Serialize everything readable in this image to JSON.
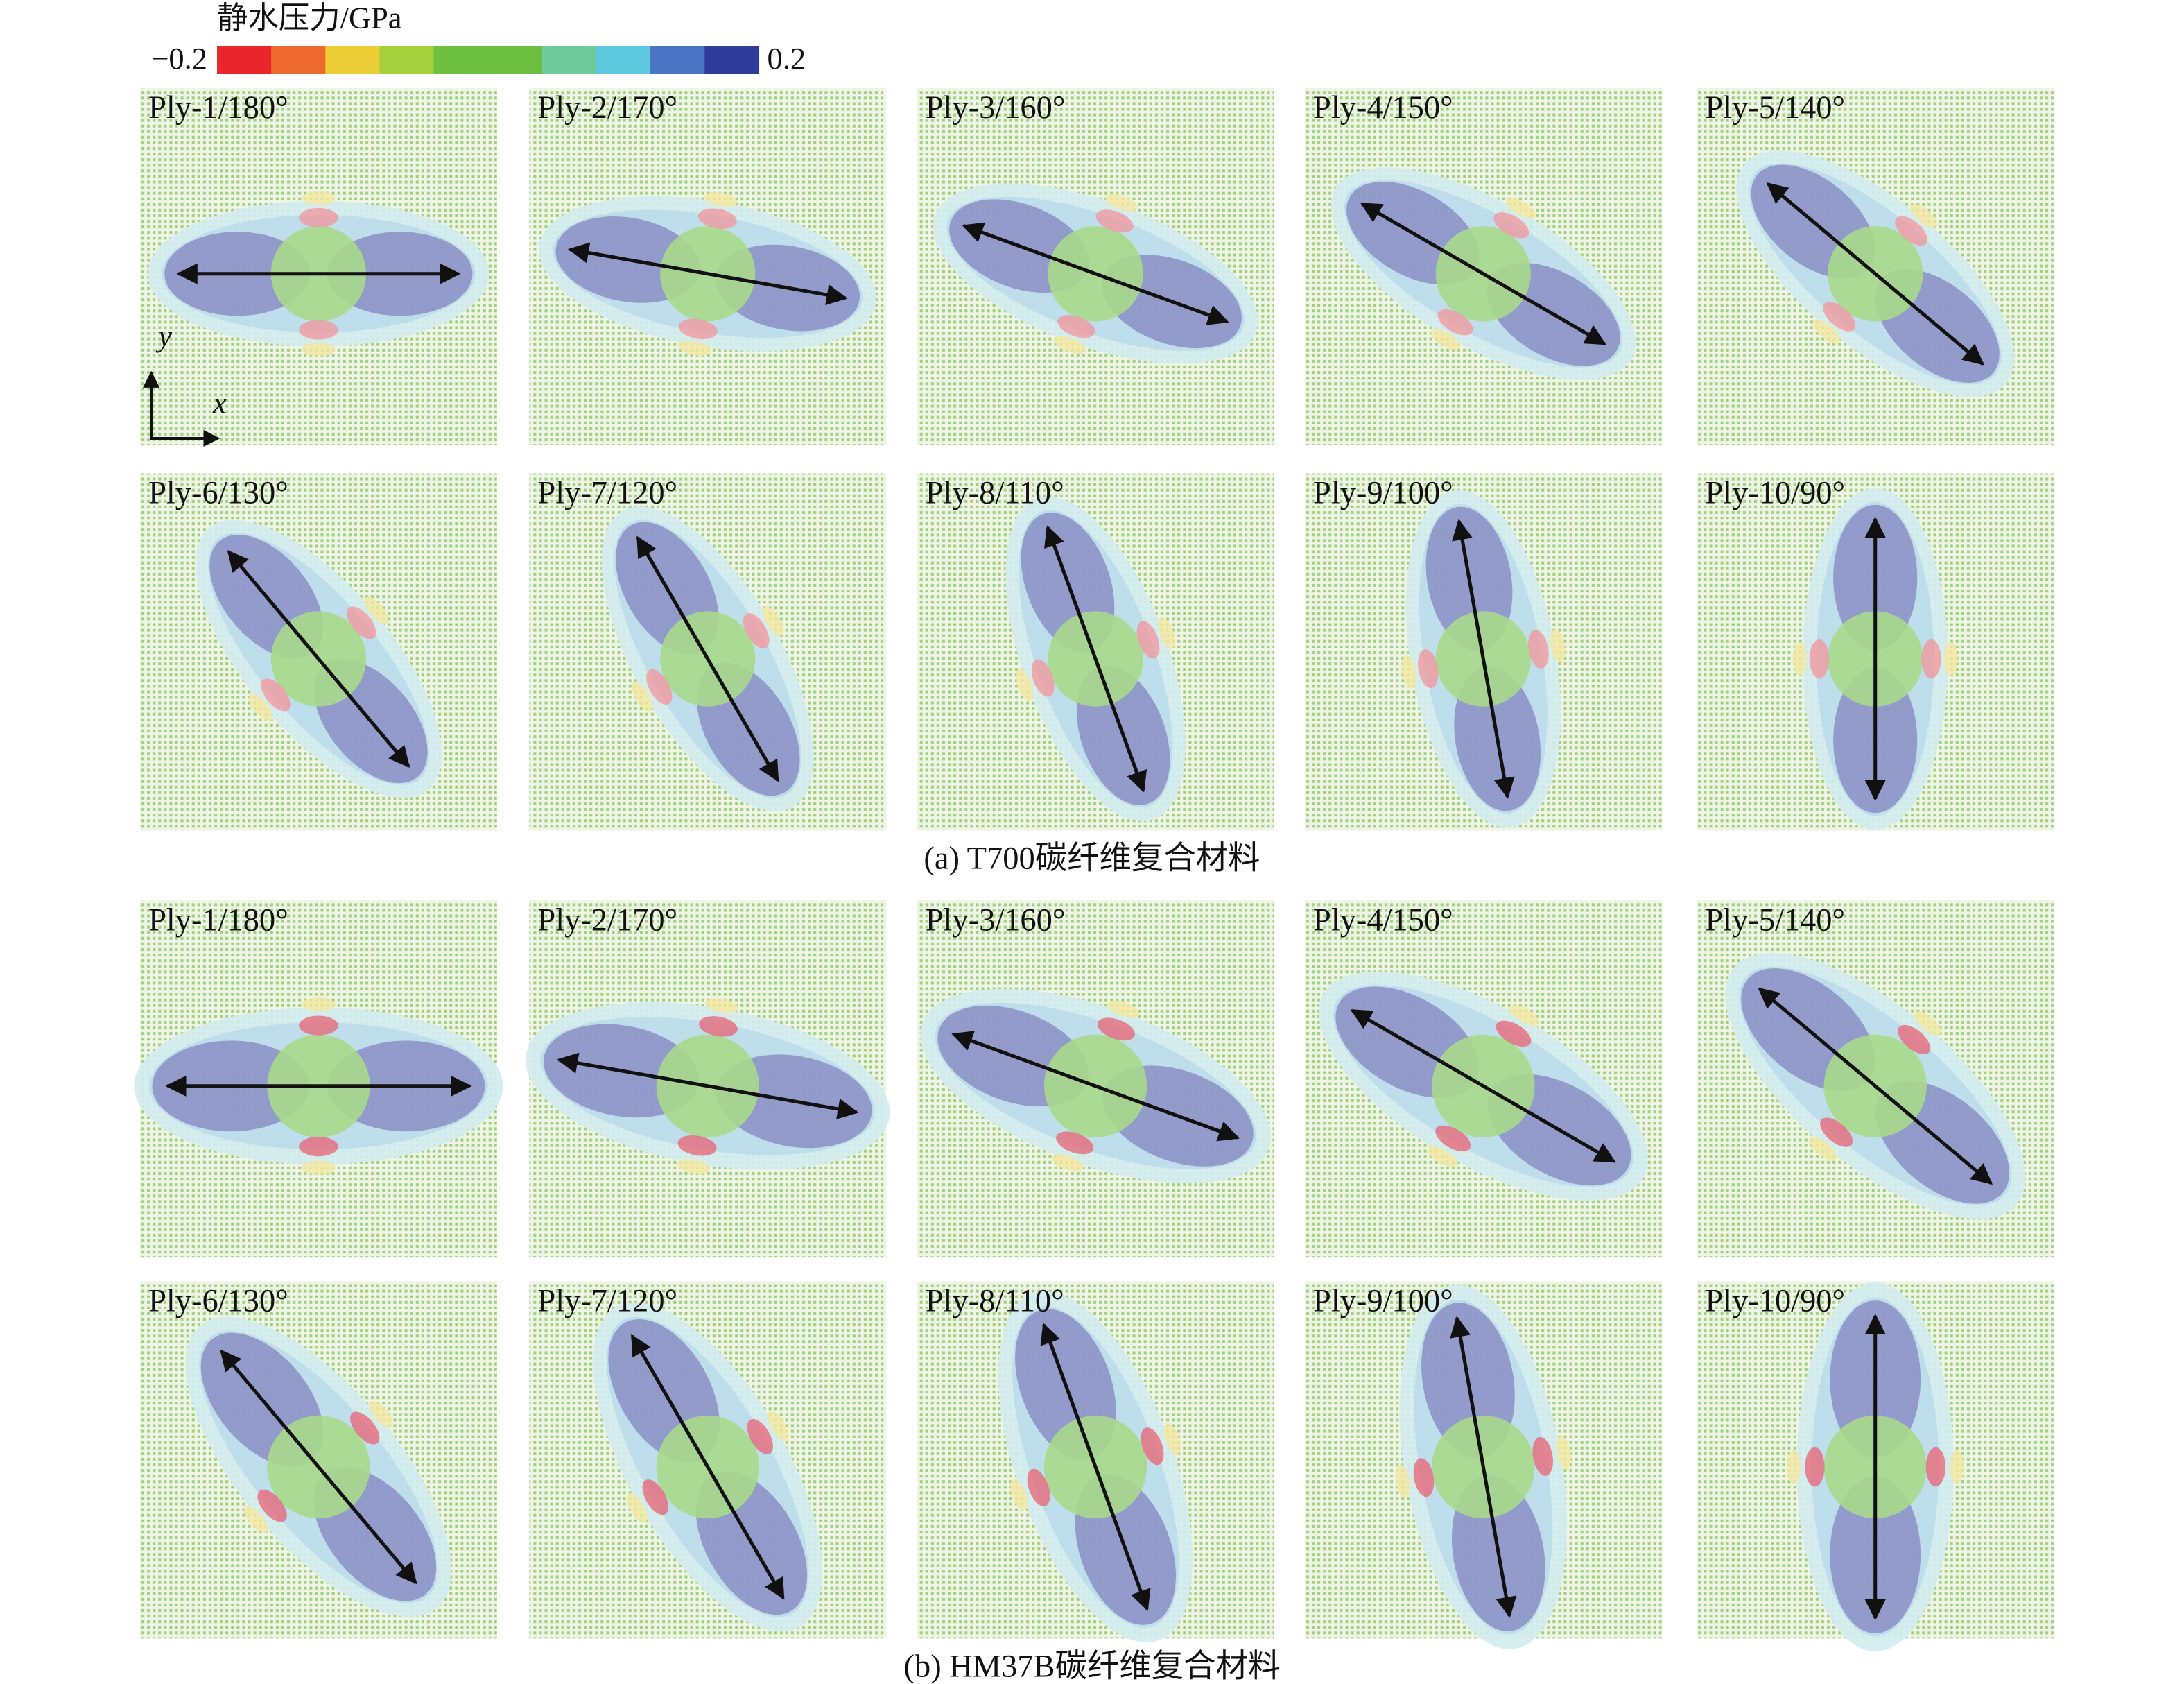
{
  "colorbar": {
    "title": "静水压力/GPa",
    "min_label": "−0.2",
    "max_label": "0.2",
    "colors": [
      "#e8262b",
      "#ee6a2e",
      "#eccf36",
      "#a6cf3c",
      "#6cbf3f",
      "#6cbf3f",
      "#6fc99a",
      "#5ec8df",
      "#4a74c4",
      "#303c9c"
    ]
  },
  "axes_indicator": {
    "y": "y",
    "x": "x"
  },
  "groups": [
    {
      "caption": "(a) T700碳纤维复合材料",
      "panels": [
        {
          "label": "Ply-1/180°",
          "angle": 180
        },
        {
          "label": "Ply-2/170°",
          "angle": 170
        },
        {
          "label": "Ply-3/160°",
          "angle": 160
        },
        {
          "label": "Ply-4/150°",
          "angle": 150
        },
        {
          "label": "Ply-5/140°",
          "angle": 140
        },
        {
          "label": "Ply-6/130°",
          "angle": 130
        },
        {
          "label": "Ply-7/120°",
          "angle": 120
        },
        {
          "label": "Ply-8/110°",
          "angle": 110
        },
        {
          "label": "Ply-9/100°",
          "angle": 100
        },
        {
          "label": "Ply-10/90°",
          "angle": 90
        }
      ]
    },
    {
      "caption": "(b) HM37B碳纤维复合材料",
      "panels": [
        {
          "label": "Ply-1/180°",
          "angle": 180
        },
        {
          "label": "Ply-2/170°",
          "angle": 170
        },
        {
          "label": "Ply-3/160°",
          "angle": 160
        },
        {
          "label": "Ply-4/150°",
          "angle": 150
        },
        {
          "label": "Ply-5/140°",
          "angle": 140
        },
        {
          "label": "Ply-6/130°",
          "angle": 130
        },
        {
          "label": "Ply-7/120°",
          "angle": 120
        },
        {
          "label": "Ply-8/110°",
          "angle": 110
        },
        {
          "label": "Ply-9/100°",
          "angle": 100
        },
        {
          "label": "Ply-10/90°",
          "angle": 90
        }
      ]
    }
  ]
}
